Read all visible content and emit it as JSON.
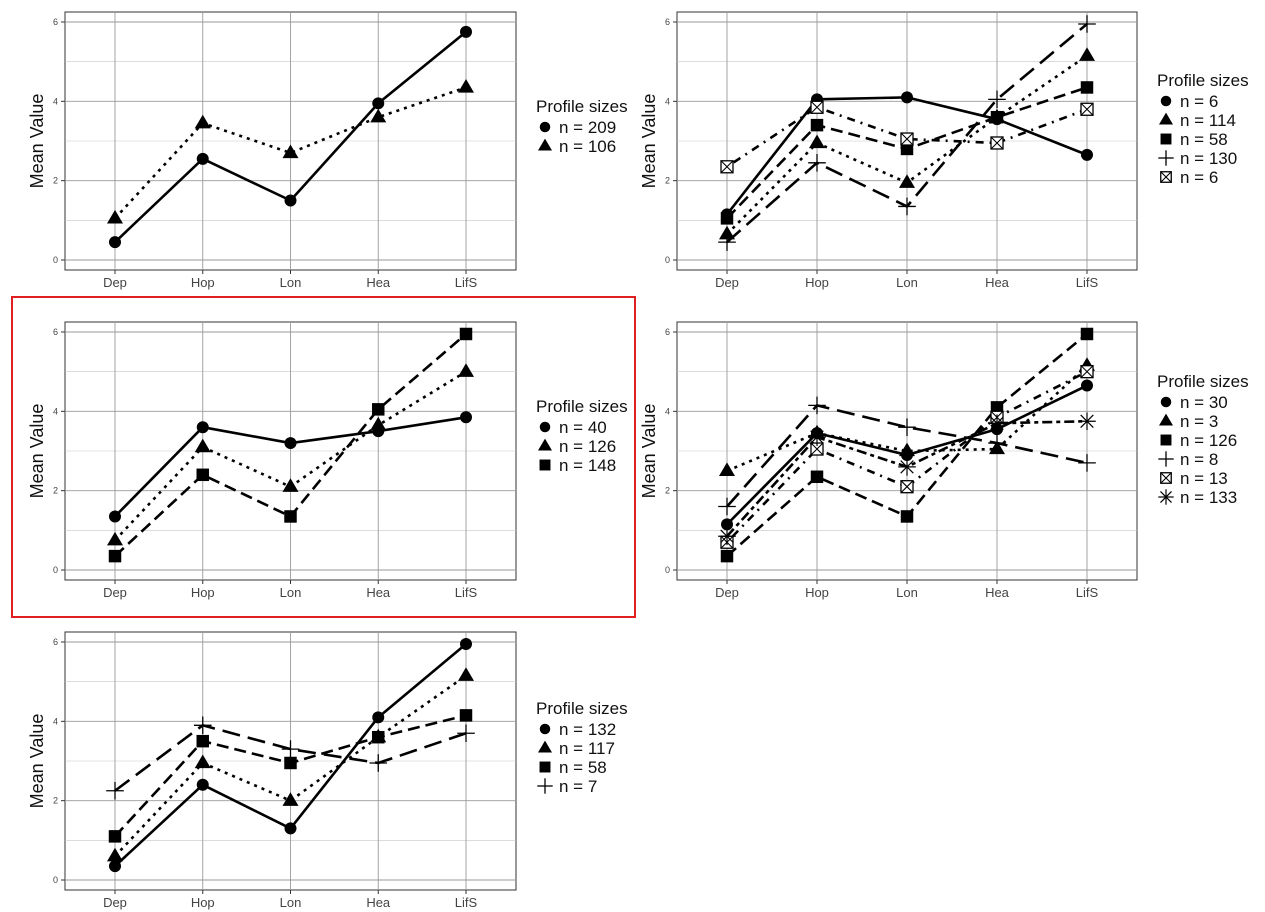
{
  "chart_data": [
    {
      "type": "line",
      "ylabel": "Mean Value",
      "categories": [
        "Dep",
        "Hop",
        "Lon",
        "Hea",
        "LifS"
      ],
      "ylim": [
        0,
        6
      ],
      "yticks": [
        0,
        2,
        4,
        6
      ],
      "grid": true,
      "legend_position": "right",
      "legend_title": "Profile sizes",
      "series": [
        {
          "name": "n = 209",
          "marker": "circle",
          "line": "solid",
          "values": [
            0.45,
            2.55,
            1.5,
            3.95,
            5.75
          ]
        },
        {
          "name": "n = 106",
          "marker": "triangle",
          "line": "dotted",
          "values": [
            1.05,
            3.45,
            2.7,
            3.6,
            4.35
          ]
        }
      ]
    },
    {
      "type": "line",
      "ylabel": "Mean Value",
      "categories": [
        "Dep",
        "Hop",
        "Lon",
        "Hea",
        "LifS"
      ],
      "ylim": [
        0,
        6
      ],
      "yticks": [
        0,
        2,
        4,
        6
      ],
      "grid": true,
      "legend_position": "right",
      "legend_title": "Profile sizes",
      "series": [
        {
          "name": "n = 6",
          "marker": "circle",
          "line": "solid",
          "values": [
            1.15,
            4.05,
            4.1,
            3.55,
            2.65
          ]
        },
        {
          "name": "n = 114",
          "marker": "triangle",
          "line": "dotted",
          "values": [
            0.65,
            2.95,
            1.95,
            3.6,
            5.15
          ]
        },
        {
          "name": "n = 58",
          "marker": "square",
          "line": "dashed",
          "values": [
            1.05,
            3.4,
            2.8,
            3.6,
            4.35
          ]
        },
        {
          "name": "n = 130",
          "marker": "plus",
          "line": "longdash",
          "values": [
            0.45,
            2.45,
            1.35,
            4.05,
            5.95
          ]
        },
        {
          "name": "n = 6",
          "marker": "boxx",
          "line": "dotdash",
          "values": [
            2.35,
            3.85,
            3.05,
            2.95,
            3.8
          ]
        }
      ]
    },
    {
      "type": "line",
      "ylabel": "Mean Value",
      "categories": [
        "Dep",
        "Hop",
        "Lon",
        "Hea",
        "LifS"
      ],
      "ylim": [
        0,
        6
      ],
      "yticks": [
        0,
        2,
        4,
        6
      ],
      "grid": true,
      "legend_position": "right",
      "legend_title": "Profile sizes",
      "series": [
        {
          "name": "n = 40",
          "marker": "circle",
          "line": "solid",
          "values": [
            1.35,
            3.6,
            3.2,
            3.5,
            3.85
          ]
        },
        {
          "name": "n = 126",
          "marker": "triangle",
          "line": "dotted",
          "values": [
            0.75,
            3.1,
            2.1,
            3.65,
            5.0
          ]
        },
        {
          "name": "n = 148",
          "marker": "square",
          "line": "dashed",
          "values": [
            0.35,
            2.4,
            1.35,
            4.05,
            5.95
          ]
        }
      ]
    },
    {
      "type": "line",
      "ylabel": "Mean Value",
      "categories": [
        "Dep",
        "Hop",
        "Lon",
        "Hea",
        "LifS"
      ],
      "ylim": [
        0,
        6
      ],
      "yticks": [
        0,
        2,
        4,
        6
      ],
      "grid": true,
      "legend_position": "right",
      "legend_title": "Profile sizes",
      "series": [
        {
          "name": "n = 30",
          "marker": "circle",
          "line": "solid",
          "values": [
            1.15,
            3.45,
            2.9,
            3.55,
            4.65
          ]
        },
        {
          "name": "n = 3",
          "marker": "triangle",
          "line": "dotted",
          "values": [
            2.5,
            3.45,
            3.0,
            3.05,
            5.15
          ]
        },
        {
          "name": "n = 126",
          "marker": "square",
          "line": "dashed",
          "values": [
            0.35,
            2.35,
            1.35,
            4.1,
            5.95
          ]
        },
        {
          "name": "n = 8",
          "marker": "plus",
          "line": "longdash",
          "values": [
            1.6,
            4.15,
            3.6,
            3.2,
            2.7
          ]
        },
        {
          "name": "n = 13",
          "marker": "boxx",
          "line": "dotdash",
          "values": [
            0.7,
            3.05,
            2.1,
            3.85,
            5.0
          ]
        },
        {
          "name": "n = 133",
          "marker": "asterisk",
          "line": "twodash",
          "values": [
            0.85,
            3.35,
            2.6,
            3.7,
            3.75
          ]
        }
      ]
    },
    {
      "type": "line",
      "ylabel": "Mean Value",
      "categories": [
        "Dep",
        "Hop",
        "Lon",
        "Hea",
        "LifS"
      ],
      "ylim": [
        0,
        6
      ],
      "yticks": [
        0,
        2,
        4,
        6
      ],
      "grid": true,
      "legend_position": "right",
      "legend_title": "Profile sizes",
      "series": [
        {
          "name": "n = 132",
          "marker": "circle",
          "line": "solid",
          "values": [
            0.35,
            2.4,
            1.3,
            4.1,
            5.95
          ]
        },
        {
          "name": "n = 117",
          "marker": "triangle",
          "line": "dotted",
          "values": [
            0.6,
            2.95,
            2.0,
            3.6,
            5.15
          ]
        },
        {
          "name": "n = 58",
          "marker": "square",
          "line": "dashed",
          "values": [
            1.1,
            3.5,
            2.95,
            3.6,
            4.15
          ]
        },
        {
          "name": "n = 7",
          "marker": "plus",
          "line": "longdash",
          "values": [
            2.25,
            3.9,
            3.3,
            2.95,
            3.7
          ]
        }
      ]
    }
  ]
}
